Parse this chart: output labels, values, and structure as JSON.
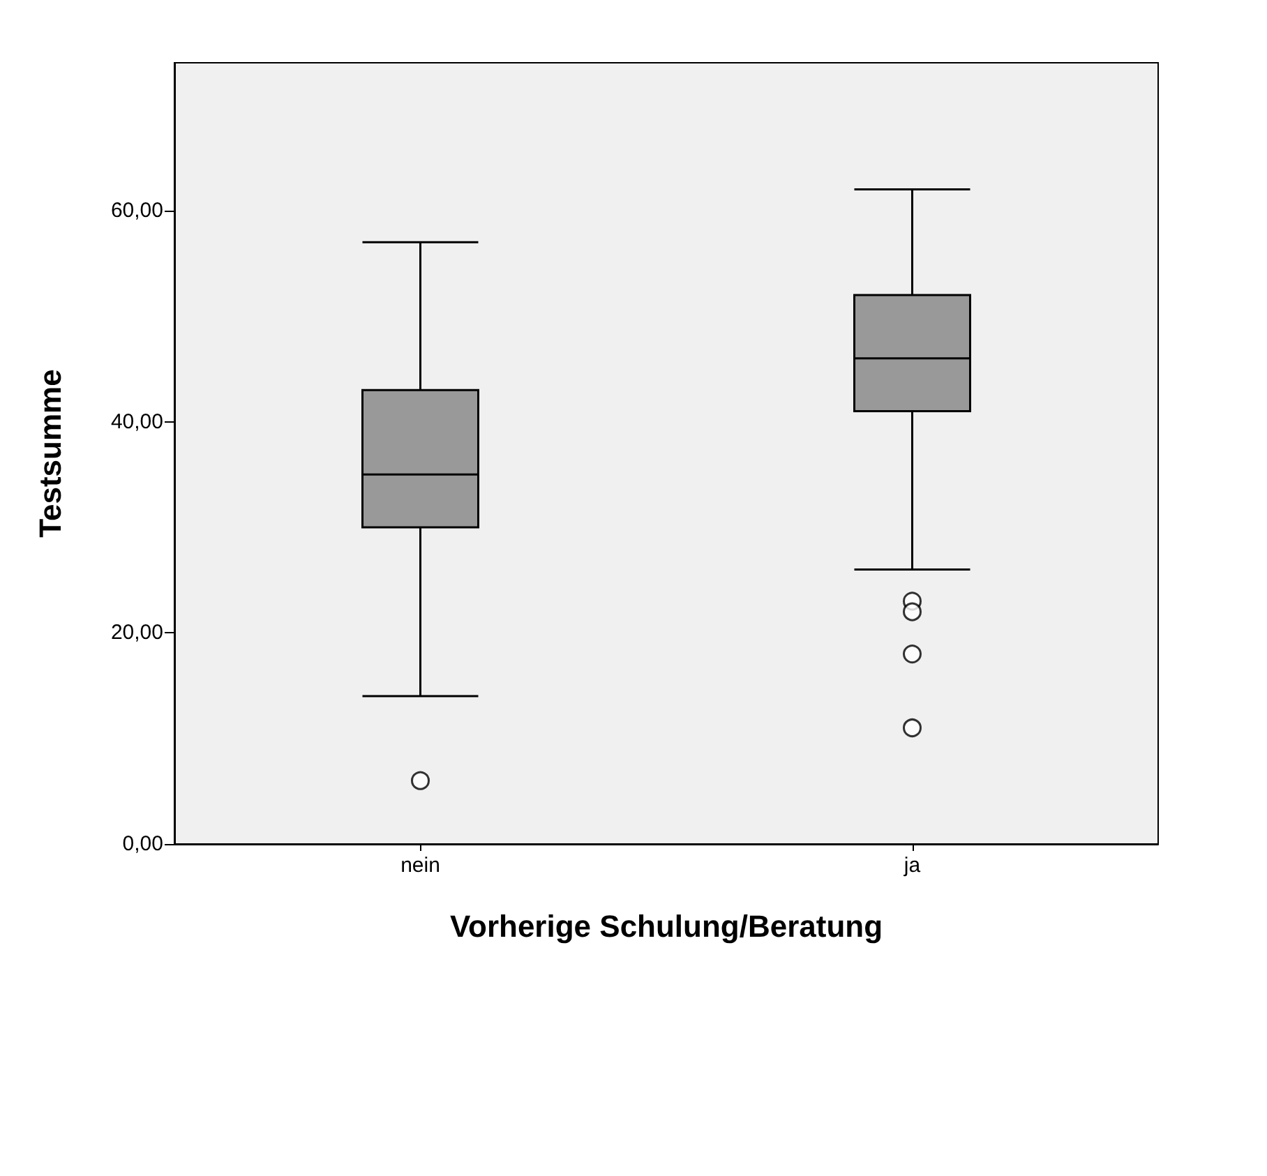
{
  "chart_data": {
    "type": "box",
    "xlabel": "Vorherige Schulung/Beratung",
    "ylabel": "Testsumme",
    "categories": [
      "nein",
      "ja"
    ],
    "boxes": [
      {
        "low": 14,
        "q1": 30,
        "median": 35,
        "q3": 43,
        "high": 57,
        "outliers": [
          6
        ]
      },
      {
        "low": 26,
        "q1": 41,
        "median": 46,
        "q3": 52,
        "high": 62,
        "outliers": [
          23,
          22,
          18,
          11
        ]
      }
    ],
    "color": "#999999",
    "marker": "circle",
    "ylim": [
      0,
      74
    ],
    "yticks": [
      {
        "value": 0,
        "label": "0,00"
      },
      {
        "value": 20,
        "label": "20,00"
      },
      {
        "value": 40,
        "label": "40,00"
      },
      {
        "value": 60,
        "label": "60,00"
      }
    ],
    "grid": false
  }
}
